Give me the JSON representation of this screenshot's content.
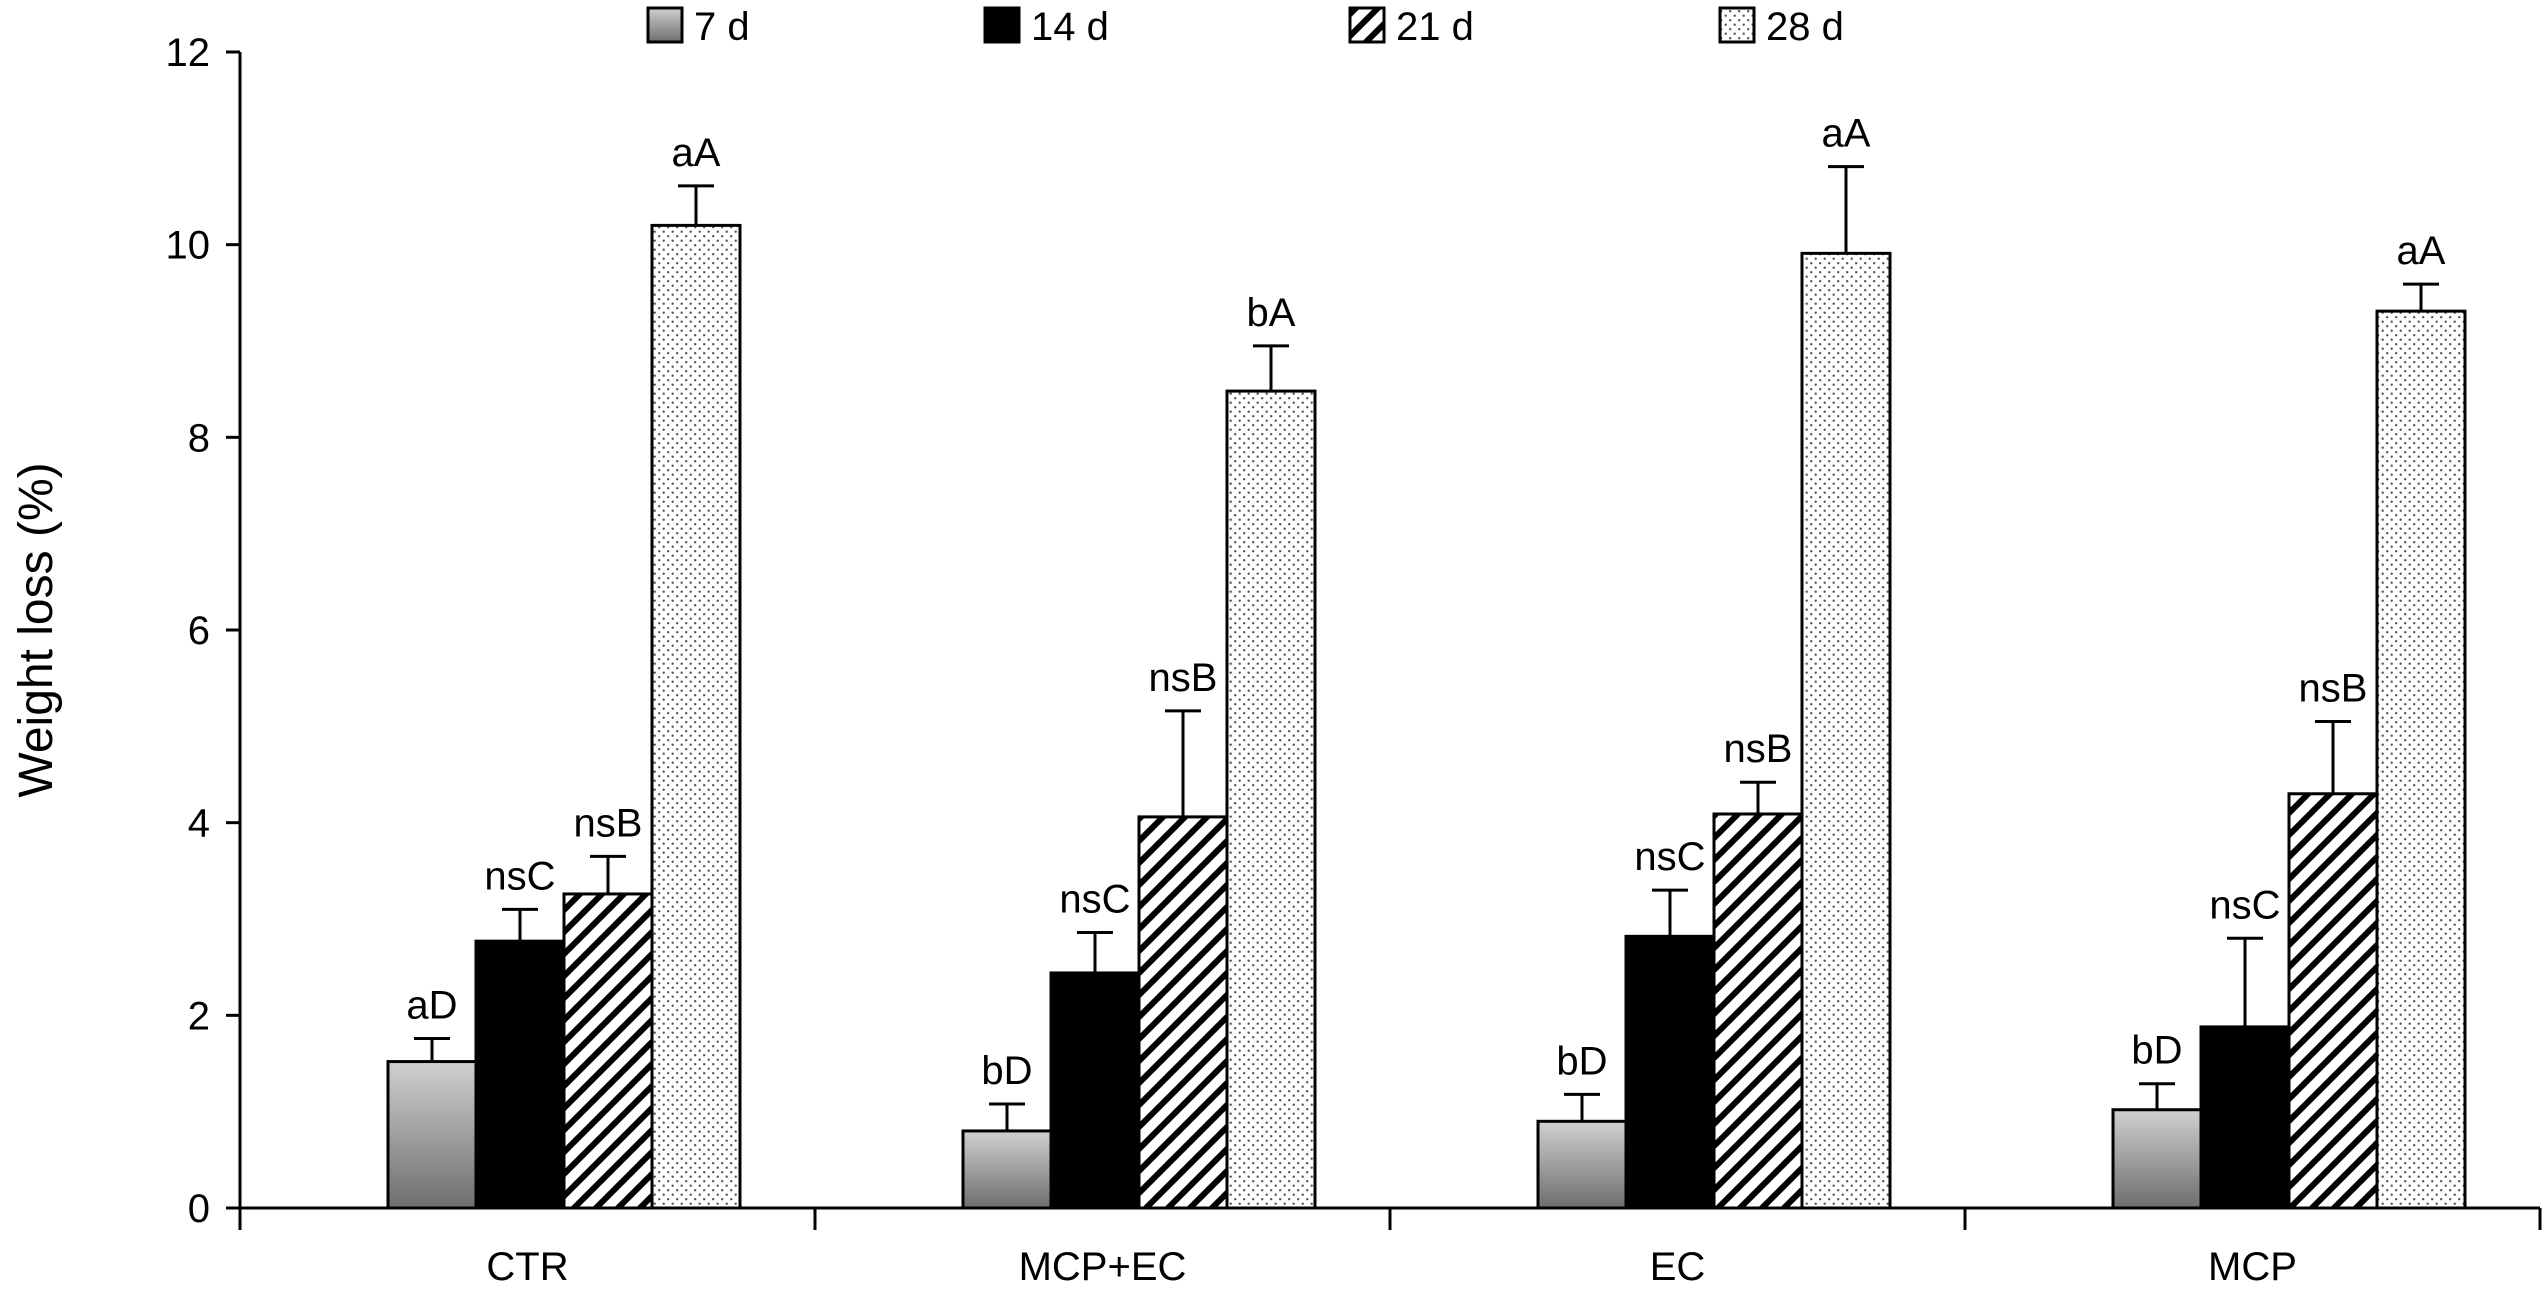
{
  "chart_data": {
    "type": "bar",
    "title": "",
    "xlabel": "",
    "ylabel": "Weight loss (%)",
    "ylim": [
      0,
      12
    ],
    "yticks": [
      "0",
      "2",
      "4",
      "6",
      "8",
      "10",
      "12"
    ],
    "grid": false,
    "legend_position": "top",
    "categories": [
      "CTR",
      "MCP+EC",
      "EC",
      "MCP"
    ],
    "series": [
      {
        "name": "7 d",
        "pattern": "gradient",
        "values": [
          1.52,
          0.8,
          0.9,
          1.02
        ],
        "errors": [
          0.24,
          0.28,
          0.28,
          0.27
        ],
        "annotations": [
          "aD",
          "bD",
          "bD",
          "bD"
        ]
      },
      {
        "name": "14 d",
        "pattern": "solid",
        "values": [
          2.77,
          2.44,
          2.82,
          1.88
        ],
        "errors": [
          0.33,
          0.42,
          0.48,
          0.92
        ],
        "annotations": [
          "nsC",
          "nsC",
          "nsC",
          "nsC"
        ]
      },
      {
        "name": "21 d",
        "pattern": "hatch",
        "values": [
          3.26,
          4.06,
          4.09,
          4.3
        ],
        "errors": [
          0.39,
          1.1,
          0.33,
          0.75
        ],
        "annotations": [
          "nsB",
          "nsB",
          "nsB",
          "nsB"
        ]
      },
      {
        "name": "28 d",
        "pattern": "dots",
        "values": [
          10.2,
          8.48,
          9.91,
          9.31
        ],
        "errors": [
          0.41,
          0.47,
          0.9,
          0.28
        ],
        "annotations": [
          "aA",
          "bA",
          "aA",
          "aA"
        ]
      }
    ],
    "colors": {
      "gradient_top": "#d0d0d0",
      "gradient_bottom": "#6e6e6e",
      "solid": "#000000",
      "outline": "#000000",
      "background": "#ffffff"
    }
  }
}
